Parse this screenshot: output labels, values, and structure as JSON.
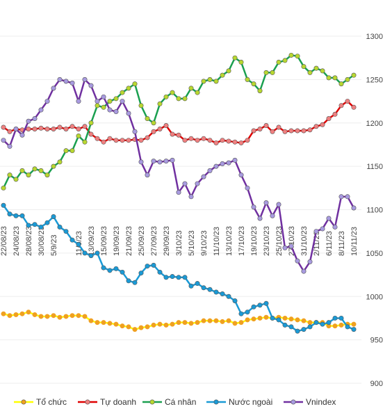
{
  "chart_data": {
    "type": "line",
    "categories": [
      "22/08/23",
      null,
      "24/08/23",
      null,
      "28/08/23",
      null,
      "30/08/23",
      null,
      "5/9/23",
      null,
      null,
      null,
      "11/9/23",
      null,
      "13/09/23",
      null,
      "15/09/23",
      null,
      "19/09/23",
      null,
      "21/09/23",
      null,
      "25/09/23",
      null,
      "27/09/23",
      null,
      "29/09/23",
      null,
      "3/10/23",
      null,
      "5/10/23",
      null,
      "9/10/23",
      null,
      "11/10/23",
      null,
      "13/10/23",
      null,
      "17/10/23",
      null,
      "19/10/23",
      null,
      "23/10/23",
      null,
      "25/10/23",
      null,
      "27/10/23",
      null,
      "31/10/23",
      null,
      "2/11/23",
      null,
      "6/11/23",
      null,
      "8/11/23",
      null,
      "10/11/23"
    ],
    "series": [
      {
        "name": "Tổ chức",
        "color": "#ffff00",
        "marker_color": "#f0a020",
        "values": [
          980,
          978,
          979,
          980,
          982,
          979,
          977,
          977,
          978,
          976,
          977,
          978,
          978,
          977,
          972,
          970,
          970,
          969,
          968,
          966,
          965,
          962,
          964,
          965,
          967,
          968,
          967,
          968,
          970,
          970,
          969,
          970,
          972,
          972,
          972,
          971,
          972,
          969,
          970,
          973,
          974,
          975,
          976,
          975,
          976,
          975,
          974,
          973,
          972,
          970,
          970,
          970,
          966,
          966,
          967,
          968,
          968
        ]
      },
      {
        "name": "Tự doanh",
        "color": "#e00000",
        "marker_color": "#f08080",
        "values": [
          1195,
          1190,
          1193,
          1192,
          1193,
          1193,
          1194,
          1193,
          1193,
          1195,
          1193,
          1196,
          1193,
          1196,
          1187,
          1182,
          1178,
          1182,
          1180,
          1180,
          1180,
          1181,
          1180,
          1183,
          1190,
          1193,
          1197,
          1187,
          1186,
          1180,
          1182,
          1180,
          1182,
          1180,
          1177,
          1180,
          1179,
          1178,
          1177,
          1180,
          1191,
          1193,
          1197,
          1190,
          1195,
          1190,
          1191,
          1191,
          1191,
          1192,
          1196,
          1198,
          1205,
          1210,
          1220,
          1225,
          1218
        ]
      },
      {
        "name": "Cá nhân",
        "color": "#1aa050",
        "marker_color": "#b8d830",
        "values": [
          1125,
          1140,
          1135,
          1145,
          1140,
          1147,
          1145,
          1140,
          1150,
          1155,
          1168,
          1168,
          1185,
          1178,
          1200,
          1220,
          1218,
          1225,
          1228,
          1235,
          1240,
          1245,
          1220,
          1205,
          1200,
          1222,
          1230,
          1235,
          1228,
          1228,
          1240,
          1235,
          1248,
          1250,
          1248,
          1255,
          1260,
          1275,
          1270,
          1250,
          1245,
          1237,
          1258,
          1258,
          1270,
          1272,
          1278,
          1277,
          1265,
          1258,
          1263,
          1260,
          1252,
          1252,
          1245,
          1250,
          1255
        ]
      },
      {
        "name": "Nước ngoài",
        "color": "#1a9ad6",
        "marker_color": "#1a9ad6",
        "values": [
          1105,
          1095,
          1093,
          1093,
          1082,
          1083,
          1080,
          1085,
          1092,
          1080,
          1075,
          1065,
          1060,
          1050,
          1047,
          1050,
          1033,
          1030,
          1032,
          1028,
          1018,
          1016,
          1027,
          1035,
          1036,
          1028,
          1022,
          1023,
          1022,
          1022,
          1012,
          1015,
          1010,
          1008,
          1005,
          1003,
          1000,
          995,
          980,
          982,
          988,
          990,
          992,
          975,
          973,
          967,
          965,
          960,
          962,
          965,
          970,
          968,
          970,
          975,
          975,
          965,
          962
        ]
      },
      {
        "name": "Vnindex",
        "color": "#7030a0",
        "marker_color": "#a89ae0",
        "values": [
          1180,
          1173,
          1193,
          1186,
          1202,
          1205,
          1215,
          1225,
          1240,
          1250,
          1248,
          1246,
          1225,
          1250,
          1243,
          1225,
          1230,
          1215,
          1213,
          1225,
          1211,
          1190,
          1155,
          1140,
          1156,
          1155,
          1156,
          1157,
          1120,
          1130,
          1115,
          1130,
          1138,
          1145,
          1150,
          1153,
          1154,
          1157,
          1140,
          1125,
          1103,
          1090,
          1108,
          1093,
          1106,
          1056,
          1058,
          1041,
          1029,
          1040,
          1075,
          1078,
          1090,
          1080,
          1115,
          1115,
          1102
        ]
      }
    ],
    "ylim": [
      900,
      1300
    ],
    "yticks": [
      900,
      950,
      1000,
      1050,
      1100,
      1150,
      1200,
      1250,
      1300
    ],
    "grid": true
  }
}
